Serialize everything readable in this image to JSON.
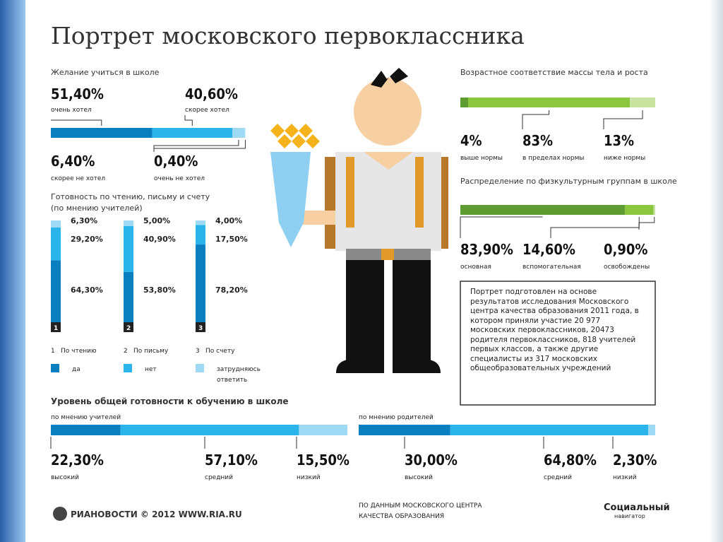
{
  "title": "Портрет московского первоклассника",
  "desire": {
    "title": "Желание учиться в школе",
    "items": [
      {
        "value": 51.4,
        "label": "51,40%",
        "caption": "очень хотел"
      },
      {
        "value": 40.6,
        "label": "40,60%",
        "caption": "скорее хотел"
      },
      {
        "value": 6.4,
        "label": "6,40%",
        "caption": "скорее не хотел"
      },
      {
        "value": 0.4,
        "label": "0,40%",
        "caption": "очень не хотел"
      }
    ]
  },
  "readiness": {
    "title": "Готовность по чтению, письму и счету",
    "subtitle": "(по мнению учителей)",
    "columns": [
      {
        "number": "1",
        "name": "По чтению",
        "values": [
          {
            "value": 64.3,
            "label": "64,30%"
          },
          {
            "value": 29.2,
            "label": "29,20%"
          },
          {
            "value": 6.3,
            "label": "6,30%"
          }
        ]
      },
      {
        "number": "2",
        "name": "По письму",
        "values": [
          {
            "value": 53.8,
            "label": "53,80%"
          },
          {
            "value": 40.9,
            "label": "40,90%"
          },
          {
            "value": 5,
            "label": "5,00%"
          }
        ]
      },
      {
        "number": "3",
        "name": "По счету",
        "values": [
          {
            "value": 78.2,
            "label": "78,20%"
          },
          {
            "value": 17.5,
            "label": "17,50%"
          },
          {
            "value": 4,
            "label": "4,00%"
          }
        ]
      }
    ],
    "legend": [
      "да",
      "нет",
      "затрудняюсь ответить"
    ]
  },
  "mass": {
    "title": "Возрастное соответствие массы тела и роста",
    "items": [
      {
        "value": 4,
        "label": "4%",
        "caption": "выше нормы"
      },
      {
        "value": 83,
        "label": "83%",
        "caption": "в пределах нормы"
      },
      {
        "value": 13,
        "label": "13%",
        "caption": "ниже нормы"
      }
    ]
  },
  "sport": {
    "title": "Распределение  по физкультурным группам в школе",
    "items": [
      {
        "value": 83.9,
        "label": "83,90%",
        "caption": "основная"
      },
      {
        "value": 14.6,
        "label": "14,60%",
        "caption": "вспомогательная"
      },
      {
        "value": 0.9,
        "label": "0,90%",
        "caption": "освобождены"
      }
    ]
  },
  "note": "Портрет подготовлен на основе результатов исследования Московского центра качества образования 2011 года, в котором приняли участие 20 977 московских первоклассников, 20473 родителя первоклассников, 818 учителей первых классов, а также другие специалисты из 317 московских общеобразовательных учреждений",
  "overall": {
    "title": "Уровень общей готовности к обучению в школе",
    "groups": [
      {
        "name": "по мнению учителей",
        "items": [
          {
            "value": 22.3,
            "label": "22,30%",
            "caption": "высокий"
          },
          {
            "value": 57.1,
            "label": "57,10%",
            "caption": "средний"
          },
          {
            "value": 15.5,
            "label": "15,50%",
            "caption": "низкий"
          }
        ]
      },
      {
        "name": "по мнению родителей",
        "items": [
          {
            "value": 30,
            "label": "30,00%",
            "caption": "высокий"
          },
          {
            "value": 64.8,
            "label": "64,80%",
            "caption": "средний"
          },
          {
            "value": 2.3,
            "label": "2,30%",
            "caption": "низкий"
          }
        ]
      }
    ]
  },
  "footer": {
    "ria": "РИАНОВОСТИ © 2012 WWW.RIA.RU",
    "source": [
      "ПО ДАННЫМ МОСКОВСКОГО ЦЕНТРА",
      "КАЧЕСТВА ОБРАЗОВАНИЯ"
    ],
    "brand": "Социальный",
    "brand_sub": "навигатор"
  }
}
